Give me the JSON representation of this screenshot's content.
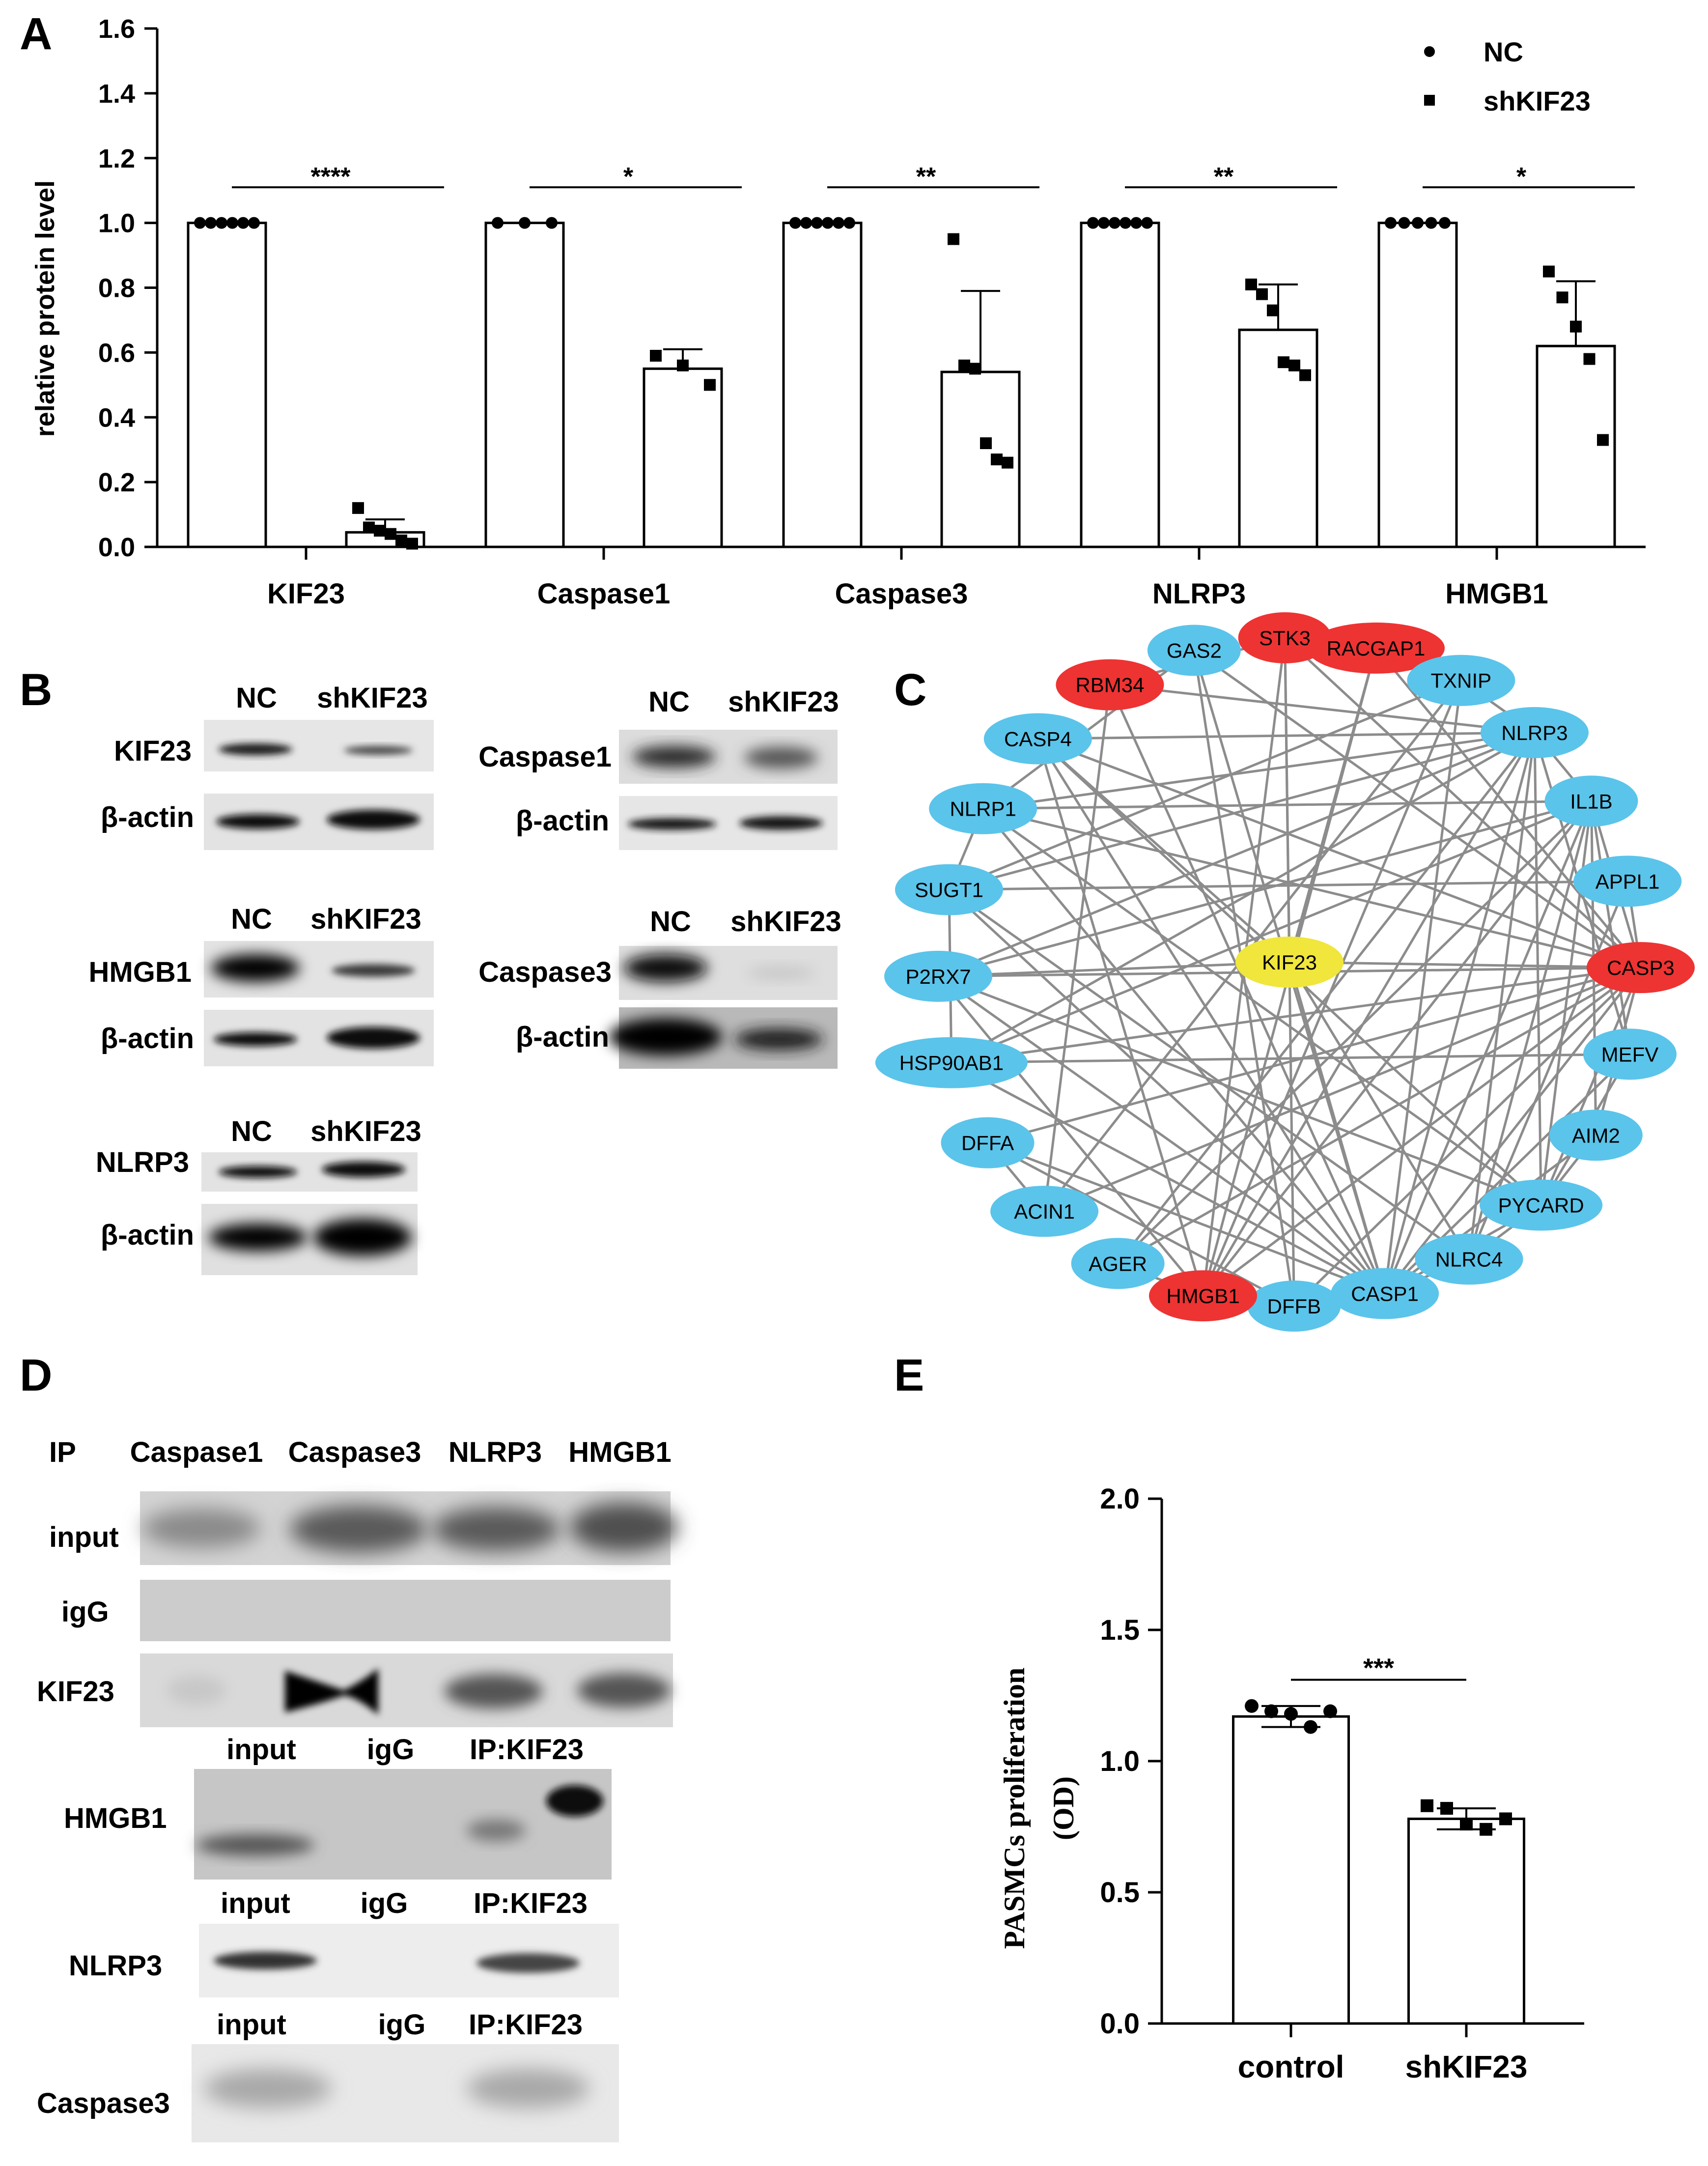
{
  "panel_labels": {
    "a": "A",
    "b": "B",
    "c": "C",
    "d": "D",
    "e": "E"
  },
  "chart_data": [
    {
      "id": "A",
      "type": "bar",
      "ylabel": "relative protein level",
      "ylim": [
        0,
        1.6
      ],
      "yticks": [
        "0.0",
        "0.2",
        "0.4",
        "0.6",
        "0.8",
        "1.0",
        "1.2",
        "1.4",
        "1.6"
      ],
      "legend": {
        "placement": "top-right",
        "items": [
          "NC",
          "shKIF23"
        ]
      },
      "categories": [
        "KIF23",
        "Caspase1",
        "Caspase3",
        "NLRP3",
        "HMGB1"
      ],
      "series": [
        {
          "name": "NC",
          "marker": "circle",
          "values": [
            1.0,
            1.0,
            1.0,
            1.0,
            1.0
          ],
          "sd": [
            0,
            0,
            0,
            0,
            0
          ],
          "points": [
            [
              1,
              1,
              1,
              1,
              1,
              1
            ],
            [
              1,
              1,
              1
            ],
            [
              1,
              1,
              1,
              1,
              1,
              1
            ],
            [
              1,
              1,
              1,
              1,
              1,
              1
            ],
            [
              1,
              1,
              1,
              1,
              1
            ]
          ]
        },
        {
          "name": "shKIF23",
          "marker": "square",
          "values": [
            0.045,
            0.55,
            0.54,
            0.67,
            0.62
          ],
          "sd": [
            0.04,
            0.06,
            0.25,
            0.14,
            0.2
          ],
          "points": [
            [
              0.12,
              0.06,
              0.05,
              0.04,
              0.02,
              0.01
            ],
            [
              0.59,
              0.56,
              0.5
            ],
            [
              0.95,
              0.56,
              0.55,
              0.32,
              0.27,
              0.26
            ],
            [
              0.81,
              0.78,
              0.73,
              0.57,
              0.56,
              0.53
            ],
            [
              0.85,
              0.77,
              0.68,
              0.58,
              0.33
            ]
          ]
        }
      ],
      "significance": [
        "****",
        "*",
        "**",
        "**",
        "*"
      ]
    },
    {
      "id": "E",
      "type": "bar",
      "ylabel_line1": "PASMCs proliferation",
      "ylabel_line2": "(OD)",
      "ylim": [
        0,
        2.0
      ],
      "yticks": [
        "0.0",
        "0.5",
        "1.0",
        "1.5",
        "2.0"
      ],
      "categories": [
        "control",
        "shKIF23"
      ],
      "values": [
        1.17,
        0.78
      ],
      "sd": [
        0.04,
        0.04
      ],
      "points": [
        [
          1.21,
          1.19,
          1.18,
          1.13,
          1.19
        ],
        [
          0.83,
          0.82,
          0.76,
          0.74,
          0.78
        ]
      ],
      "markers": [
        "circle",
        "square"
      ],
      "significance": "***"
    }
  ],
  "panel_b": {
    "blots": [
      {
        "header": [
          "NC",
          "shKIF23"
        ],
        "target": "KIF23",
        "control": "β-actin"
      },
      {
        "header": [
          "NC",
          "shKIF23"
        ],
        "target": "Caspase1",
        "control": "β-actin"
      },
      {
        "header": [
          "NC",
          "shKIF23"
        ],
        "target": "HMGB1",
        "control": "β-actin"
      },
      {
        "header": [
          "NC",
          "shKIF23"
        ],
        "target": "Caspase3",
        "control": "β-actin"
      },
      {
        "header": [
          "NC",
          "shKIF23"
        ],
        "target": "NLRP3",
        "control": "β-actin"
      }
    ]
  },
  "panel_c": {
    "center": "KIF23",
    "nodes": [
      {
        "label": "GAS2",
        "color": "#5bc4ea"
      },
      {
        "label": "STK3",
        "color": "#ee3333"
      },
      {
        "label": "RACGAP1",
        "color": "#ee3333"
      },
      {
        "label": "TXNIP",
        "color": "#5bc4ea"
      },
      {
        "label": "NLRP3",
        "color": "#5bc4ea"
      },
      {
        "label": "IL1B",
        "color": "#5bc4ea"
      },
      {
        "label": "APPL1",
        "color": "#5bc4ea"
      },
      {
        "label": "CASP3",
        "color": "#ee3333"
      },
      {
        "label": "MEFV",
        "color": "#5bc4ea"
      },
      {
        "label": "AIM2",
        "color": "#5bc4ea"
      },
      {
        "label": "PYCARD",
        "color": "#5bc4ea"
      },
      {
        "label": "NLRC4",
        "color": "#5bc4ea"
      },
      {
        "label": "CASP1",
        "color": "#5bc4ea"
      },
      {
        "label": "DFFB",
        "color": "#5bc4ea"
      },
      {
        "label": "HMGB1",
        "color": "#ee3333"
      },
      {
        "label": "AGER",
        "color": "#5bc4ea"
      },
      {
        "label": "ACIN1",
        "color": "#5bc4ea"
      },
      {
        "label": "DFFA",
        "color": "#5bc4ea"
      },
      {
        "label": "HSP90AB1",
        "color": "#5bc4ea"
      },
      {
        "label": "P2RX7",
        "color": "#5bc4ea"
      },
      {
        "label": "SUGT1",
        "color": "#5bc4ea"
      },
      {
        "label": "NLRP1",
        "color": "#5bc4ea"
      },
      {
        "label": "CASP4",
        "color": "#5bc4ea"
      },
      {
        "label": "RBM34",
        "color": "#ee3333"
      }
    ],
    "center_color": "#f0e63c",
    "edge_color": "#8c8c8c"
  },
  "panel_d": {
    "ip_label": "IP",
    "columns": [
      "Caspase1",
      "Caspase3",
      "NLRP3",
      "HMGB1"
    ],
    "rows": [
      "input",
      "igG",
      "KIF23"
    ],
    "sub_blots": [
      {
        "header": [
          "input",
          "igG",
          "IP:KIF23"
        ],
        "target": "HMGB1"
      },
      {
        "header": [
          "input",
          "igG",
          "IP:KIF23"
        ],
        "target": "NLRP3"
      },
      {
        "header": [
          "input",
          "igG",
          "IP:KIF23"
        ],
        "target": "Caspase3"
      }
    ]
  }
}
